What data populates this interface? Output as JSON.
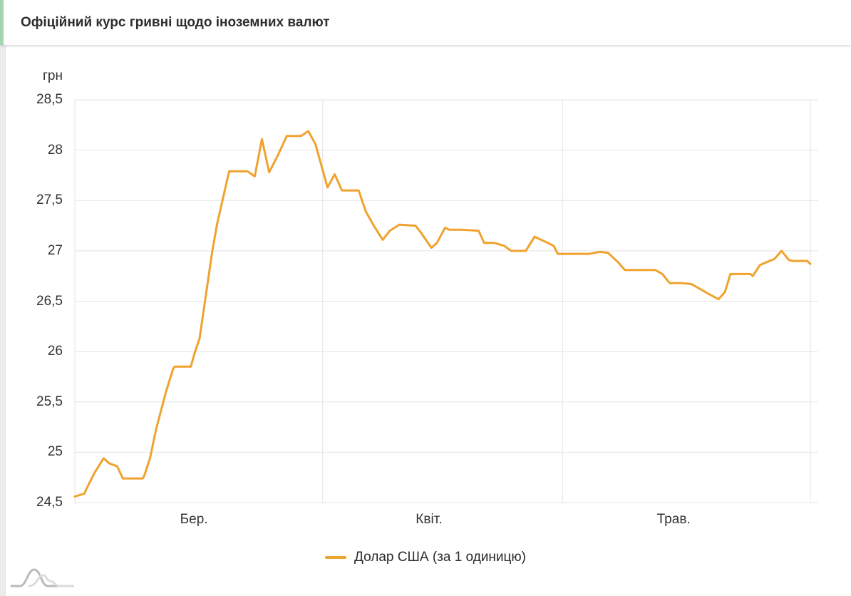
{
  "header": {
    "title": "Офіційний курс гривні щодо іноземних валют",
    "accent_color": "#a3d5b3"
  },
  "legend": {
    "items": [
      {
        "label": "Долар США (за 1 одиницю)",
        "color": "#f0a22e"
      }
    ]
  },
  "icons": {
    "watermark": "amcharts-logo"
  },
  "chart_data": {
    "type": "line",
    "title": "Офіційний курс гривні щодо іноземних валют",
    "xlabel": "",
    "ylabel": "грн",
    "ylim": [
      24.5,
      28.5
    ],
    "xlim_days": [
      0,
      92
    ],
    "grid": true,
    "grid_color": "#e4e4e4",
    "legend_position": "bottom",
    "y_ticks": [
      {
        "label": "28,5",
        "value": 28.5
      },
      {
        "label": "28",
        "value": 28.0
      },
      {
        "label": "27,5",
        "value": 27.5
      },
      {
        "label": "27",
        "value": 27.0
      },
      {
        "label": "26,5",
        "value": 26.5
      },
      {
        "label": "26",
        "value": 26.0
      },
      {
        "label": "25,5",
        "value": 25.5
      },
      {
        "label": "25",
        "value": 25.0
      },
      {
        "label": "24,5",
        "value": 24.5
      }
    ],
    "x_ticks": [
      {
        "label": "Бер.",
        "day": 14.9
      },
      {
        "label": "Квіт.",
        "day": 44.3
      },
      {
        "label": "Трав.",
        "day": 74.9
      }
    ],
    "x_gridlines_days": [
      31,
      61,
      92
    ],
    "series": [
      {
        "name": "Долар США (за 1 одиницю)",
        "color": "#f0a22e",
        "points": [
          [
            0.0,
            24.56
          ],
          [
            1.2,
            24.59
          ],
          [
            1.6,
            24.66
          ],
          [
            2.5,
            24.8
          ],
          [
            3.6,
            24.94
          ],
          [
            4.3,
            24.89
          ],
          [
            5.3,
            24.86
          ],
          [
            6.0,
            24.74
          ],
          [
            8.5,
            24.74
          ],
          [
            8.7,
            24.77
          ],
          [
            9.4,
            24.94
          ],
          [
            10.2,
            25.24
          ],
          [
            11.4,
            25.6
          ],
          [
            12.3,
            25.83
          ],
          [
            12.5,
            25.85
          ],
          [
            14.5,
            25.85
          ],
          [
            15.0,
            25.99
          ],
          [
            15.6,
            26.13
          ],
          [
            17.2,
            27.0
          ],
          [
            17.8,
            27.27
          ],
          [
            19.3,
            27.79
          ],
          [
            21.6,
            27.79
          ],
          [
            22.5,
            27.74
          ],
          [
            23.4,
            28.11
          ],
          [
            24.3,
            27.78
          ],
          [
            25.4,
            27.95
          ],
          [
            26.5,
            28.14
          ],
          [
            28.3,
            28.14
          ],
          [
            29.2,
            28.19
          ],
          [
            30.1,
            28.06
          ],
          [
            31.6,
            27.63
          ],
          [
            32.5,
            27.76
          ],
          [
            33.4,
            27.6
          ],
          [
            35.5,
            27.6
          ],
          [
            36.4,
            27.39
          ],
          [
            37.4,
            27.25
          ],
          [
            38.5,
            27.11
          ],
          [
            39.4,
            27.2
          ],
          [
            40.6,
            27.26
          ],
          [
            42.6,
            27.25
          ],
          [
            43.2,
            27.19
          ],
          [
            44.6,
            27.03
          ],
          [
            45.3,
            27.08
          ],
          [
            46.3,
            27.23
          ],
          [
            46.8,
            27.21
          ],
          [
            48.3,
            27.21
          ],
          [
            50.5,
            27.2
          ],
          [
            51.2,
            27.08
          ],
          [
            52.4,
            27.08
          ],
          [
            53.7,
            27.05
          ],
          [
            54.4,
            27.01
          ],
          [
            54.6,
            27.0
          ],
          [
            56.4,
            27.0
          ],
          [
            57.5,
            27.14
          ],
          [
            58.6,
            27.1
          ],
          [
            59.9,
            27.05
          ],
          [
            60.4,
            26.97
          ],
          [
            64.3,
            26.97
          ],
          [
            65.7,
            26.99
          ],
          [
            66.7,
            26.98
          ],
          [
            67.9,
            26.89
          ],
          [
            68.8,
            26.81
          ],
          [
            72.6,
            26.81
          ],
          [
            73.5,
            26.77
          ],
          [
            74.2,
            26.7
          ],
          [
            74.4,
            26.68
          ],
          [
            75.9,
            26.68
          ],
          [
            77.1,
            26.67
          ],
          [
            77.8,
            26.64
          ],
          [
            79.1,
            26.58
          ],
          [
            80.5,
            26.52
          ],
          [
            81.3,
            26.59
          ],
          [
            82.0,
            26.77
          ],
          [
            82.2,
            26.77
          ],
          [
            84.5,
            26.77
          ],
          [
            84.8,
            26.75
          ],
          [
            85.7,
            26.86
          ],
          [
            86.6,
            26.89
          ],
          [
            87.5,
            26.92
          ],
          [
            88.4,
            27.0
          ],
          [
            89.3,
            26.91
          ],
          [
            89.8,
            26.9
          ],
          [
            91.6,
            26.9
          ],
          [
            92.0,
            26.87
          ]
        ]
      }
    ]
  }
}
